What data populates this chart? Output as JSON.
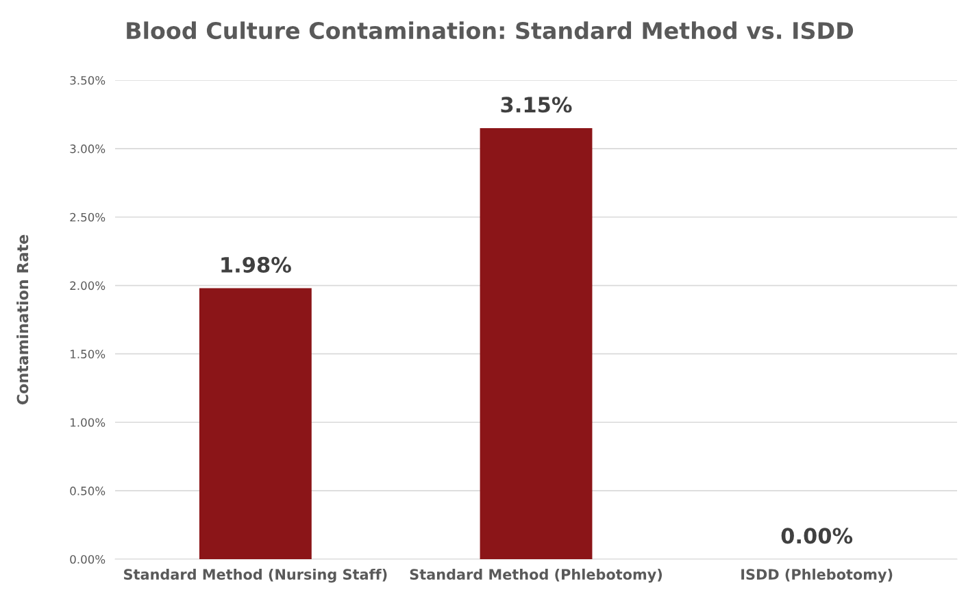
{
  "chart_data": {
    "type": "bar",
    "title": "Blood Culture Contamination: Standard Method vs. ISDD",
    "ylabel": "Contamination Rate",
    "categories": [
      "Standard Method (Nursing Staff)",
      "Standard Method (Phlebotomy)",
      "ISDD (Phlebotomy)"
    ],
    "values": [
      1.98,
      3.15,
      0.0
    ],
    "color": "#8b1518",
    "value_labels": [
      "1.98%",
      "3.15%",
      "0.00%"
    ],
    "ylim": [
      0,
      3.5
    ],
    "yticks": [
      {
        "value": 0,
        "label": "0.00%"
      },
      {
        "value": 0.5,
        "label": "0.50%"
      },
      {
        "value": 1.0,
        "label": "1.00%"
      },
      {
        "value": 1.5,
        "label": "1.50%"
      },
      {
        "value": 2.0,
        "label": "2.00%"
      },
      {
        "value": 2.5,
        "label": "2.50%"
      },
      {
        "value": 3.0,
        "label": "3.00%"
      },
      {
        "value": 3.5,
        "label": "3.50%"
      }
    ],
    "grid": "y",
    "legend": false
  }
}
